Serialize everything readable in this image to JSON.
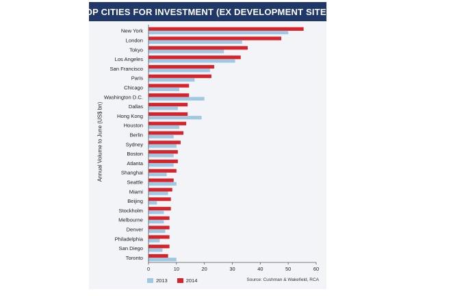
{
  "title": "TOP CITIES FOR INVESTMENT (EX DEVELOPMENT SITES)",
  "source": "Source: Cushman & Wakefield, RCA",
  "colors": {
    "title_bg": "#1f3868",
    "panel_bg": "#f2f4f8",
    "s2013": "#9fc8e3",
    "s2014": "#d9232a"
  },
  "chart_data": {
    "type": "bar",
    "orientation": "horizontal",
    "title": "TOP CITIES FOR INVESTMENT (EX DEVELOPMENT SITES)",
    "ylabel": "Annual Volume to June (US$ bn)",
    "xlabel": "",
    "xlim": [
      0,
      60
    ],
    "xticks": [
      "0",
      "10",
      "20",
      "30",
      "40",
      "50",
      "60"
    ],
    "categories": [
      "New York",
      "London",
      "Tokyo",
      "Los Angeles",
      "San Francisco",
      "Paris",
      "Chicago",
      "Washington D.C.",
      "Dallas",
      "Hong Kong",
      "Houston",
      "Berlin",
      "Sydney",
      "Boston",
      "Atlanta",
      "Shanghai",
      "Seattle",
      "Miami",
      "Beijing",
      "Stockholm",
      "Melbourne",
      "Denver",
      "Philadelphia",
      "San Diego",
      "Toronto"
    ],
    "series": [
      {
        "name": "2013",
        "values": [
          50,
          33.5,
          27,
          31,
          22,
          16.5,
          11,
          20,
          10.5,
          19,
          11,
          9,
          10,
          9,
          9,
          6.5,
          10,
          7,
          3,
          5.5,
          5.5,
          6,
          4,
          5,
          10
        ]
      },
      {
        "name": "2014",
        "values": [
          55.5,
          47.5,
          35.5,
          33,
          23.5,
          22.5,
          14.5,
          14.5,
          14,
          14,
          13.5,
          12.5,
          11.5,
          10.5,
          10.5,
          10,
          9,
          8.5,
          8,
          8,
          7.5,
          7.5,
          7.5,
          7.5,
          7
        ]
      }
    ],
    "grid": false,
    "legend_position": "bottom-left"
  }
}
